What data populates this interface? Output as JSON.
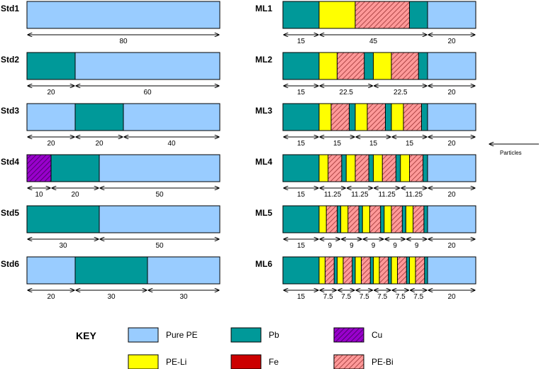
{
  "colors": {
    "pure_pe": "#99ccff",
    "pb": "#009999",
    "cu": "#9900cc",
    "pe_li": "#ffff00",
    "fe": "#cc0000",
    "pe_bi": "#ff9999",
    "stroke": "#000000"
  },
  "standard_shields": [
    {
      "label": "Std1",
      "layers": [
        {
          "mat": "pure_pe",
          "t": 80
        }
      ],
      "dims": [
        {
          "t": 80,
          "text": "80"
        }
      ]
    },
    {
      "label": "Std2",
      "layers": [
        {
          "mat": "pb",
          "t": 20
        },
        {
          "mat": "pure_pe",
          "t": 60
        }
      ],
      "dims": [
        {
          "t": 20,
          "text": "20"
        },
        {
          "t": 60,
          "text": "60"
        }
      ]
    },
    {
      "label": "Std3",
      "layers": [
        {
          "mat": "pure_pe",
          "t": 20
        },
        {
          "mat": "pb",
          "t": 20
        },
        {
          "mat": "pure_pe",
          "t": 40
        }
      ],
      "dims": [
        {
          "t": 20,
          "text": "20"
        },
        {
          "t": 20,
          "text": "20"
        },
        {
          "t": 40,
          "text": "40"
        }
      ]
    },
    {
      "label": "Std4",
      "layers": [
        {
          "mat": "cu",
          "t": 10
        },
        {
          "mat": "pb",
          "t": 20
        },
        {
          "mat": "pure_pe",
          "t": 50
        }
      ],
      "dims": [
        {
          "t": 10,
          "text": "10"
        },
        {
          "t": 20,
          "text": "20"
        },
        {
          "t": 50,
          "text": "50"
        }
      ]
    },
    {
      "label": "Std5",
      "layers": [
        {
          "mat": "pb",
          "t": 30
        },
        {
          "mat": "pure_pe",
          "t": 50
        }
      ],
      "dims": [
        {
          "t": 30,
          "text": "30"
        },
        {
          "t": 50,
          "text": "50"
        }
      ]
    },
    {
      "label": "Std6",
      "layers": [
        {
          "mat": "pure_pe",
          "t": 20
        },
        {
          "mat": "pb",
          "t": 30
        },
        {
          "mat": "pure_pe",
          "t": 30
        }
      ],
      "dims": [
        {
          "t": 20,
          "text": "20"
        },
        {
          "t": 30,
          "text": "30"
        },
        {
          "t": 30,
          "text": "30"
        }
      ]
    }
  ],
  "multilayer_shields": [
    {
      "label": "ML1",
      "period_count": 1,
      "dims": [
        {
          "t": 15,
          "text": "15"
        },
        {
          "t": 45,
          "text": "45"
        },
        {
          "t": 20,
          "text": "20"
        }
      ]
    },
    {
      "label": "ML2",
      "period_count": 2,
      "dims": [
        {
          "t": 15,
          "text": "15"
        },
        {
          "t": 22.5,
          "text": "22.5"
        },
        {
          "t": 22.5,
          "text": "22.5"
        },
        {
          "t": 20,
          "text": "20"
        }
      ]
    },
    {
      "label": "ML3",
      "period_count": 3,
      "dims": [
        {
          "t": 15,
          "text": "15"
        },
        {
          "t": 15,
          "text": "15"
        },
        {
          "t": 15,
          "text": "15"
        },
        {
          "t": 15,
          "text": "15"
        },
        {
          "t": 20,
          "text": "20"
        }
      ]
    },
    {
      "label": "ML4",
      "period_count": 4,
      "dims": [
        {
          "t": 15,
          "text": "15"
        },
        {
          "t": 11.25,
          "text": "11.25"
        },
        {
          "t": 11.25,
          "text": "11.25"
        },
        {
          "t": 11.25,
          "text": "11.25"
        },
        {
          "t": 11.25,
          "text": "11.25"
        },
        {
          "t": 20,
          "text": "20"
        }
      ]
    },
    {
      "label": "ML5",
      "period_count": 5,
      "dims": [
        {
          "t": 15,
          "text": "15"
        },
        {
          "t": 9,
          "text": "9"
        },
        {
          "t": 9,
          "text": "9"
        },
        {
          "t": 9,
          "text": "9"
        },
        {
          "t": 9,
          "text": "9"
        },
        {
          "t": 9,
          "text": "9"
        },
        {
          "t": 20,
          "text": "20"
        }
      ]
    },
    {
      "label": "ML6",
      "period_count": 6,
      "dims": [
        {
          "t": 15,
          "text": "15"
        },
        {
          "t": 7.5,
          "text": "7.5"
        },
        {
          "t": 7.5,
          "text": "7.5"
        },
        {
          "t": 7.5,
          "text": "7.5"
        },
        {
          "t": 7.5,
          "text": "7.5"
        },
        {
          "t": 7.5,
          "text": "7.5"
        },
        {
          "t": 7.5,
          "text": "7.5"
        },
        {
          "t": 20,
          "text": "20"
        }
      ]
    }
  ],
  "multilayer_period_pattern": [
    {
      "mat": "pe_li",
      "fraction": 0.333
    },
    {
      "mat": "pe_bi",
      "fraction": 0.5
    },
    {
      "mat": "pb",
      "fraction": 0.167
    }
  ],
  "particles_label": "Particles",
  "key": {
    "title": "KEY",
    "items": [
      {
        "mat": "pure_pe",
        "label": "Pure PE"
      },
      {
        "mat": "pb",
        "label": "Pb"
      },
      {
        "mat": "cu",
        "label": "Cu"
      },
      {
        "mat": "pe_li",
        "label": "PE-Li"
      },
      {
        "mat": "fe",
        "label": "Fe"
      },
      {
        "mat": "pe_bi",
        "label": "PE-Bi"
      }
    ]
  }
}
